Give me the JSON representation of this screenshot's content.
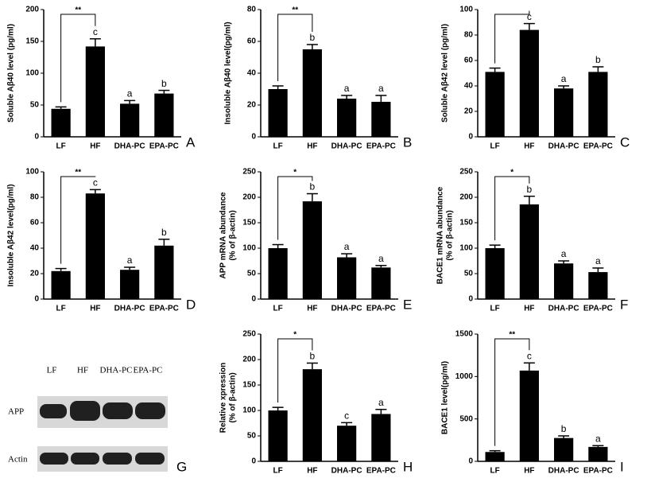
{
  "chart_data": [
    {
      "type": "bar",
      "panel": "A",
      "ylabel": [
        "Soluble Aβ40 level (pg/ml)"
      ],
      "categories": [
        "LF",
        "HF",
        "DHA-PC",
        "EPA-PC"
      ],
      "values": [
        44,
        142,
        52,
        68
      ],
      "errors": [
        3,
        12,
        5,
        5
      ],
      "letters": [
        null,
        "c",
        "a",
        "b"
      ],
      "significance": "**",
      "color": "#000000",
      "ylim": [
        0,
        200
      ],
      "yticks": [
        0,
        50,
        100,
        150,
        200
      ]
    },
    {
      "type": "bar",
      "panel": "B",
      "ylabel": [
        "Insoluble Aβ40 level(pg/ml)"
      ],
      "categories": [
        "LF",
        "HF",
        "DHA-PC",
        "EPA-PC"
      ],
      "values": [
        30,
        55,
        24,
        22
      ],
      "errors": [
        2,
        3,
        2,
        4
      ],
      "letters": [
        null,
        "b",
        "a",
        "a"
      ],
      "significance": "**",
      "color": "#000000",
      "ylim": [
        0,
        80
      ],
      "yticks": [
        0,
        20,
        40,
        60,
        80
      ]
    },
    {
      "type": "bar",
      "panel": "C",
      "ylabel": [
        "Soluble Aβ42 level (pg/ml)"
      ],
      "categories": [
        "LF",
        "HF",
        "DHA-PC",
        "EPA-PC"
      ],
      "values": [
        51,
        84,
        38,
        51
      ],
      "errors": [
        3,
        5,
        2,
        4
      ],
      "letters": [
        null,
        "c",
        "a",
        "b"
      ],
      "color": "#000000",
      "ylim": [
        0,
        100
      ],
      "yticks": [
        0,
        20,
        40,
        60,
        80,
        100
      ]
    },
    {
      "type": "bar",
      "panel": "D",
      "ylabel": [
        "Insoluble Aβ42 level(pg/ml)"
      ],
      "categories": [
        "LF",
        "HF",
        "DHA-PC",
        "EPA-PC"
      ],
      "values": [
        22,
        83,
        23,
        42
      ],
      "errors": [
        2,
        3,
        2,
        5
      ],
      "letters": [
        null,
        "c",
        "a",
        "b"
      ],
      "significance": "**",
      "color": "#000000",
      "ylim": [
        0,
        100
      ],
      "yticks": [
        0,
        20,
        40,
        60,
        80,
        100
      ]
    },
    {
      "type": "bar",
      "panel": "E",
      "ylabel": [
        "APP mRNA abundance",
        "(% of β-actin)"
      ],
      "categories": [
        "LF",
        "HF",
        "DHA-PC",
        "EPA-PC"
      ],
      "values": [
        100,
        192,
        82,
        62
      ],
      "errors": [
        7,
        15,
        7,
        4
      ],
      "letters": [
        null,
        "b",
        "a",
        "a"
      ],
      "significance": "*",
      "color": "#000000",
      "ylim": [
        0,
        250
      ],
      "yticks": [
        0,
        50,
        100,
        150,
        200,
        250
      ]
    },
    {
      "type": "bar",
      "panel": "F",
      "ylabel": [
        "BACE1 mRNA abundance",
        "(% of β-actin)"
      ],
      "categories": [
        "LF",
        "HF",
        "DHA-PC",
        "EPA-PC"
      ],
      "values": [
        100,
        186,
        70,
        53
      ],
      "errors": [
        6,
        16,
        5,
        8
      ],
      "letters": [
        null,
        "b",
        "a",
        "a"
      ],
      "significance": "*",
      "color": "#000000",
      "ylim": [
        0,
        250
      ],
      "yticks": [
        0,
        50,
        100,
        150,
        200,
        250
      ]
    },
    {
      "type": "bar",
      "panel": "H",
      "ylabel": [
        "Relative xpression",
        "(% of β-actin)"
      ],
      "categories": [
        "LF",
        "HF",
        "DHA-PC",
        "EPA-PC"
      ],
      "values": [
        100,
        181,
        70,
        93
      ],
      "errors": [
        6,
        12,
        6,
        9
      ],
      "letters": [
        null,
        "b",
        "c",
        "a"
      ],
      "significance": "*",
      "color": "#000000",
      "ylim": [
        0,
        250
      ],
      "yticks": [
        0,
        50,
        100,
        150,
        200,
        250
      ]
    },
    {
      "type": "bar",
      "panel": "I",
      "ylabel": [
        "BACE1 level(pg/ml)"
      ],
      "categories": [
        "LF",
        "HF",
        "DHA-PC",
        "EPA-PC"
      ],
      "values": [
        110,
        1070,
        275,
        170
      ],
      "errors": [
        15,
        90,
        25,
        15
      ],
      "letters": [
        null,
        "c",
        "b",
        "a"
      ],
      "significance": "**",
      "color": "#000000",
      "ylim": [
        0,
        1500
      ],
      "yticks": [
        0,
        500,
        1000,
        1500
      ]
    }
  ],
  "blot": {
    "panel": "G",
    "lanes": [
      "LF",
      "HF",
      "DHA-PC",
      "EPA-PC"
    ],
    "rows": [
      "APP",
      "Actin"
    ]
  }
}
